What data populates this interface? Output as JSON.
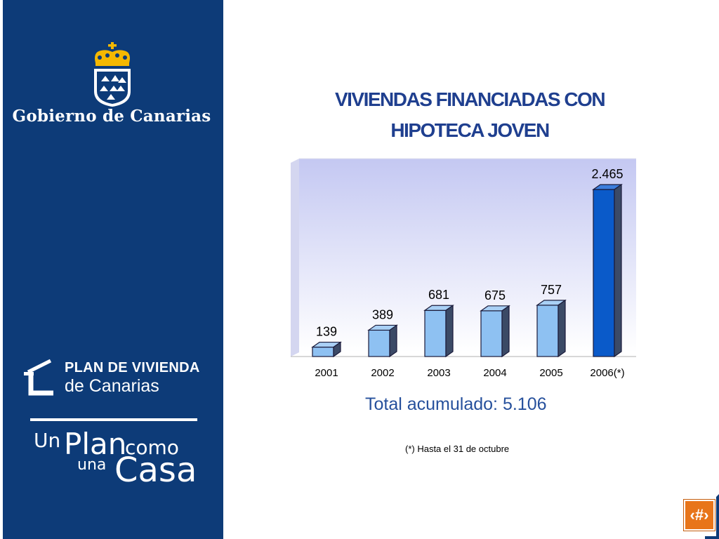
{
  "sidebar": {
    "government_name": "Gobierno de Canarias",
    "plan_logo_line1": "PLAN DE VIVIENDA",
    "plan_logo_line2": "de Canarias",
    "slogan": {
      "un": "Un",
      "plan": "Plan",
      "como": "como",
      "una": "una",
      "casa": "Casa"
    },
    "background_color": "#0d3b78",
    "crest_icon": "canarias-crest-icon",
    "crest_crown_color": "#f5b800"
  },
  "chart_data": {
    "type": "bar",
    "title_line1": "VIVIENDAS FINANCIADAS CON",
    "title_line2": "HIPOTECA JOVEN",
    "categories": [
      "2001",
      "2002",
      "2003",
      "2004",
      "2005",
      "2006(*)"
    ],
    "values": [
      139,
      389,
      681,
      675,
      757,
      2465
    ],
    "data_labels": [
      "139",
      "389",
      "681",
      "675",
      "757",
      "2.465"
    ],
    "ylim": [
      0,
      2465
    ],
    "grid": false,
    "legend": "none",
    "xlabel": "",
    "ylabel": "",
    "bar_color": "#8ec1f2",
    "highlight_bar_color": "#0a5ac9"
  },
  "summary": {
    "total_label": "Total acumulado: 5.106"
  },
  "footnote": "(*) Hasta el 31 de octubre",
  "slide_number_symbol": "‹#›"
}
